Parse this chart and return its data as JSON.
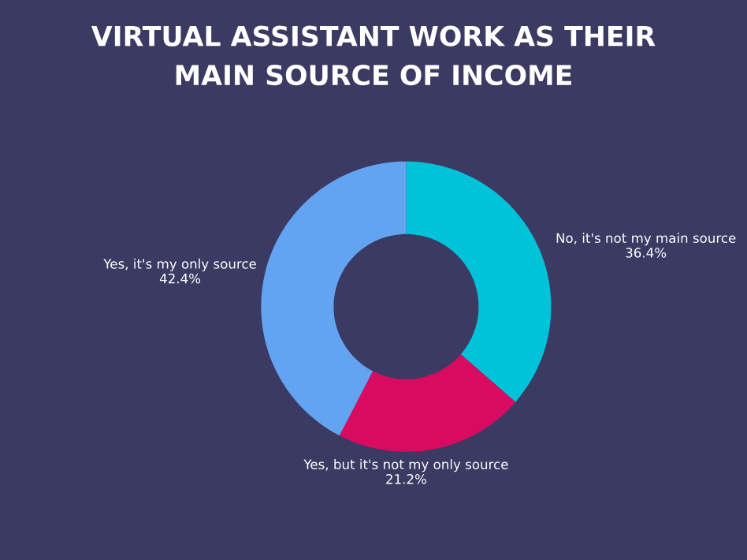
{
  "chart_data": {
    "type": "donut",
    "title": "VIRTUAL ASSISTANT WORK AS THEIR\nMAIN SOURCE OF INCOME",
    "categories": [
      "No, it's not my main source",
      "Yes, but it's not my only source",
      "Yes, it's my only source"
    ],
    "values": [
      36.4,
      21.2,
      42.4
    ],
    "colors": [
      "#00c3da",
      "#d80b61",
      "#63a4f2"
    ],
    "value_labels": [
      "36.4%",
      "21.2%",
      "42.4%"
    ],
    "legend": false
  }
}
